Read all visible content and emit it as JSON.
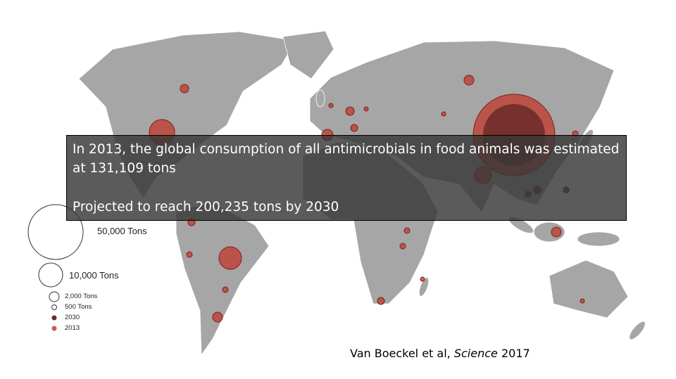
{
  "caption": {
    "line1": "In 2013, the global consumption of all antimicrobials in food animals was estimated at 131,109 tons",
    "line2": "Projected to reach 200,235 tons by 2030"
  },
  "legend": {
    "items": [
      "50,000 Tons",
      "10,000 Tons",
      "2,000 Tons",
      "500 Tons",
      "2030",
      "2013"
    ]
  },
  "citation": {
    "authors": "Van Boeckel et al,",
    "journal": "Science",
    "year": "2017"
  }
}
